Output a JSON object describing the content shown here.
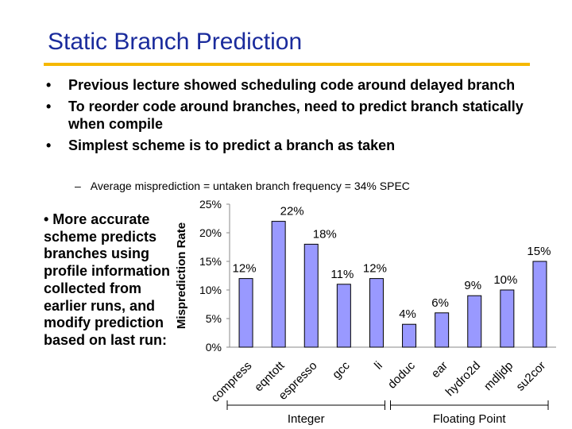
{
  "slide": {
    "title": "Static Branch Prediction",
    "bullets": [
      "Previous lecture showed scheduling code around delayed branch",
      "To reorder code around branches, need to predict branch statically when compile",
      "Simplest scheme is to predict a branch as taken"
    ],
    "sub_bullet": "Average misprediction = untaken branch frequency = 34% SPEC",
    "side_text": "• More accurate scheme predicts branches using profile information collected from earlier runs, and modify prediction based on last run:",
    "bullet_marker": "•",
    "dash_marker": "–"
  },
  "chart_data": {
    "type": "bar",
    "categories": [
      "compress",
      "eqntott",
      "espresso",
      "gcc",
      "li",
      "doduc",
      "ear",
      "hydro2d",
      "mdljdp",
      "su2cor"
    ],
    "values": [
      12,
      22,
      18,
      11,
      12,
      4,
      6,
      9,
      10,
      15
    ],
    "value_labels": [
      "12%",
      "22%",
      "18%",
      "11%",
      "12%",
      "4%",
      "6%",
      "9%",
      "10%",
      "15%"
    ],
    "ylabel": "Misprediction Rate",
    "ylim": [
      0,
      25
    ],
    "yticks": [
      0,
      5,
      10,
      15,
      20,
      25
    ],
    "ytick_labels": [
      "0%",
      "5%",
      "10%",
      "15%",
      "20%",
      "25%"
    ],
    "groups": [
      {
        "label": "Integer",
        "start": 0,
        "end": 4
      },
      {
        "label": "Floating Point",
        "start": 5,
        "end": 9
      }
    ],
    "bar_color": "#9999ff",
    "grid": false
  }
}
